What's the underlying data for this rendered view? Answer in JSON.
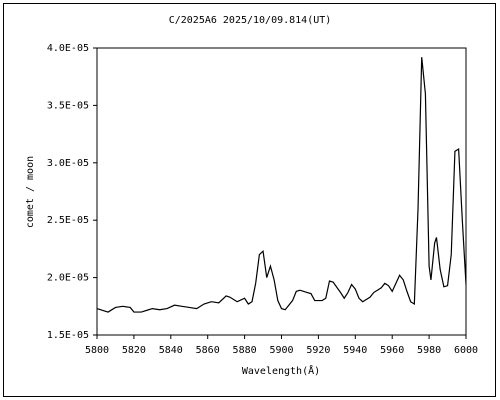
{
  "chart_data": {
    "type": "line",
    "title": "C/2025A6   2025/10/09.814(UT)",
    "x_label": "Wavelength(Å)",
    "y_label": "comet / moon",
    "color": "#000000",
    "x": [
      5800,
      5804,
      5806,
      5810,
      5814,
      5818,
      5820,
      5824,
      5828,
      5830,
      5834,
      5838,
      5842,
      5846,
      5850,
      5854,
      5858,
      5862,
      5866,
      5870,
      5872,
      5876,
      5880,
      5882,
      5884,
      5886,
      5888,
      5890,
      5892,
      5894,
      5896,
      5898,
      5900,
      5902,
      5906,
      5908,
      5910,
      5914,
      5916,
      5918,
      5922,
      5924,
      5926,
      5928,
      5932,
      5934,
      5936,
      5938,
      5940,
      5942,
      5944,
      5948,
      5950,
      5954,
      5956,
      5958,
      5960,
      5962,
      5964,
      5966,
      5968,
      5970,
      5972,
      5974,
      5976,
      5978,
      5980,
      5981,
      5983,
      5984,
      5986,
      5988,
      5990,
      5992,
      5994,
      5996,
      5998,
      6000
    ],
    "values": [
      1.73e-05,
      1.71e-05,
      1.7e-05,
      1.74e-05,
      1.75e-05,
      1.74e-05,
      1.7e-05,
      1.7e-05,
      1.72e-05,
      1.73e-05,
      1.72e-05,
      1.73e-05,
      1.76e-05,
      1.75e-05,
      1.74e-05,
      1.73e-05,
      1.77e-05,
      1.79e-05,
      1.78e-05,
      1.84e-05,
      1.83e-05,
      1.79e-05,
      1.82e-05,
      1.77e-05,
      1.79e-05,
      1.95e-05,
      2.2e-05,
      2.23e-05,
      2e-05,
      2.1e-05,
      1.98e-05,
      1.8e-05,
      1.73e-05,
      1.72e-05,
      1.8e-05,
      1.88e-05,
      1.89e-05,
      1.87e-05,
      1.86e-05,
      1.8e-05,
      1.8e-05,
      1.82e-05,
      1.97e-05,
      1.96e-05,
      1.87e-05,
      1.82e-05,
      1.87e-05,
      1.94e-05,
      1.9e-05,
      1.82e-05,
      1.79e-05,
      1.83e-05,
      1.87e-05,
      1.91e-05,
      1.95e-05,
      1.93e-05,
      1.88e-05,
      1.95e-05,
      2.02e-05,
      1.98e-05,
      1.88e-05,
      1.79e-05,
      1.77e-05,
      2.6e-05,
      3.92e-05,
      3.6e-05,
      2.1e-05,
      1.98e-05,
      2.3e-05,
      2.35e-05,
      2.07e-05,
      1.92e-05,
      1.93e-05,
      2.2e-05,
      3.1e-05,
      3.12e-05,
      2.5e-05,
      1.94e-05
    ],
    "xlim": [
      5800,
      6000
    ],
    "xticks": [
      5800,
      5820,
      5840,
      5860,
      5880,
      5900,
      5920,
      5940,
      5960,
      5980,
      6000
    ],
    "ylim": [
      1.5e-05,
      4e-05
    ],
    "yticks": [
      {
        "value": 1.5e-05,
        "label": "1.5E-05"
      },
      {
        "value": 2e-05,
        "label": "2.0E-05"
      },
      {
        "value": 2.5e-05,
        "label": "2.5E-05"
      },
      {
        "value": 3e-05,
        "label": "3.0E-05"
      },
      {
        "value": 3.5e-05,
        "label": "3.5E-05"
      },
      {
        "value": 4e-05,
        "label": "4.0E-05"
      }
    ]
  }
}
